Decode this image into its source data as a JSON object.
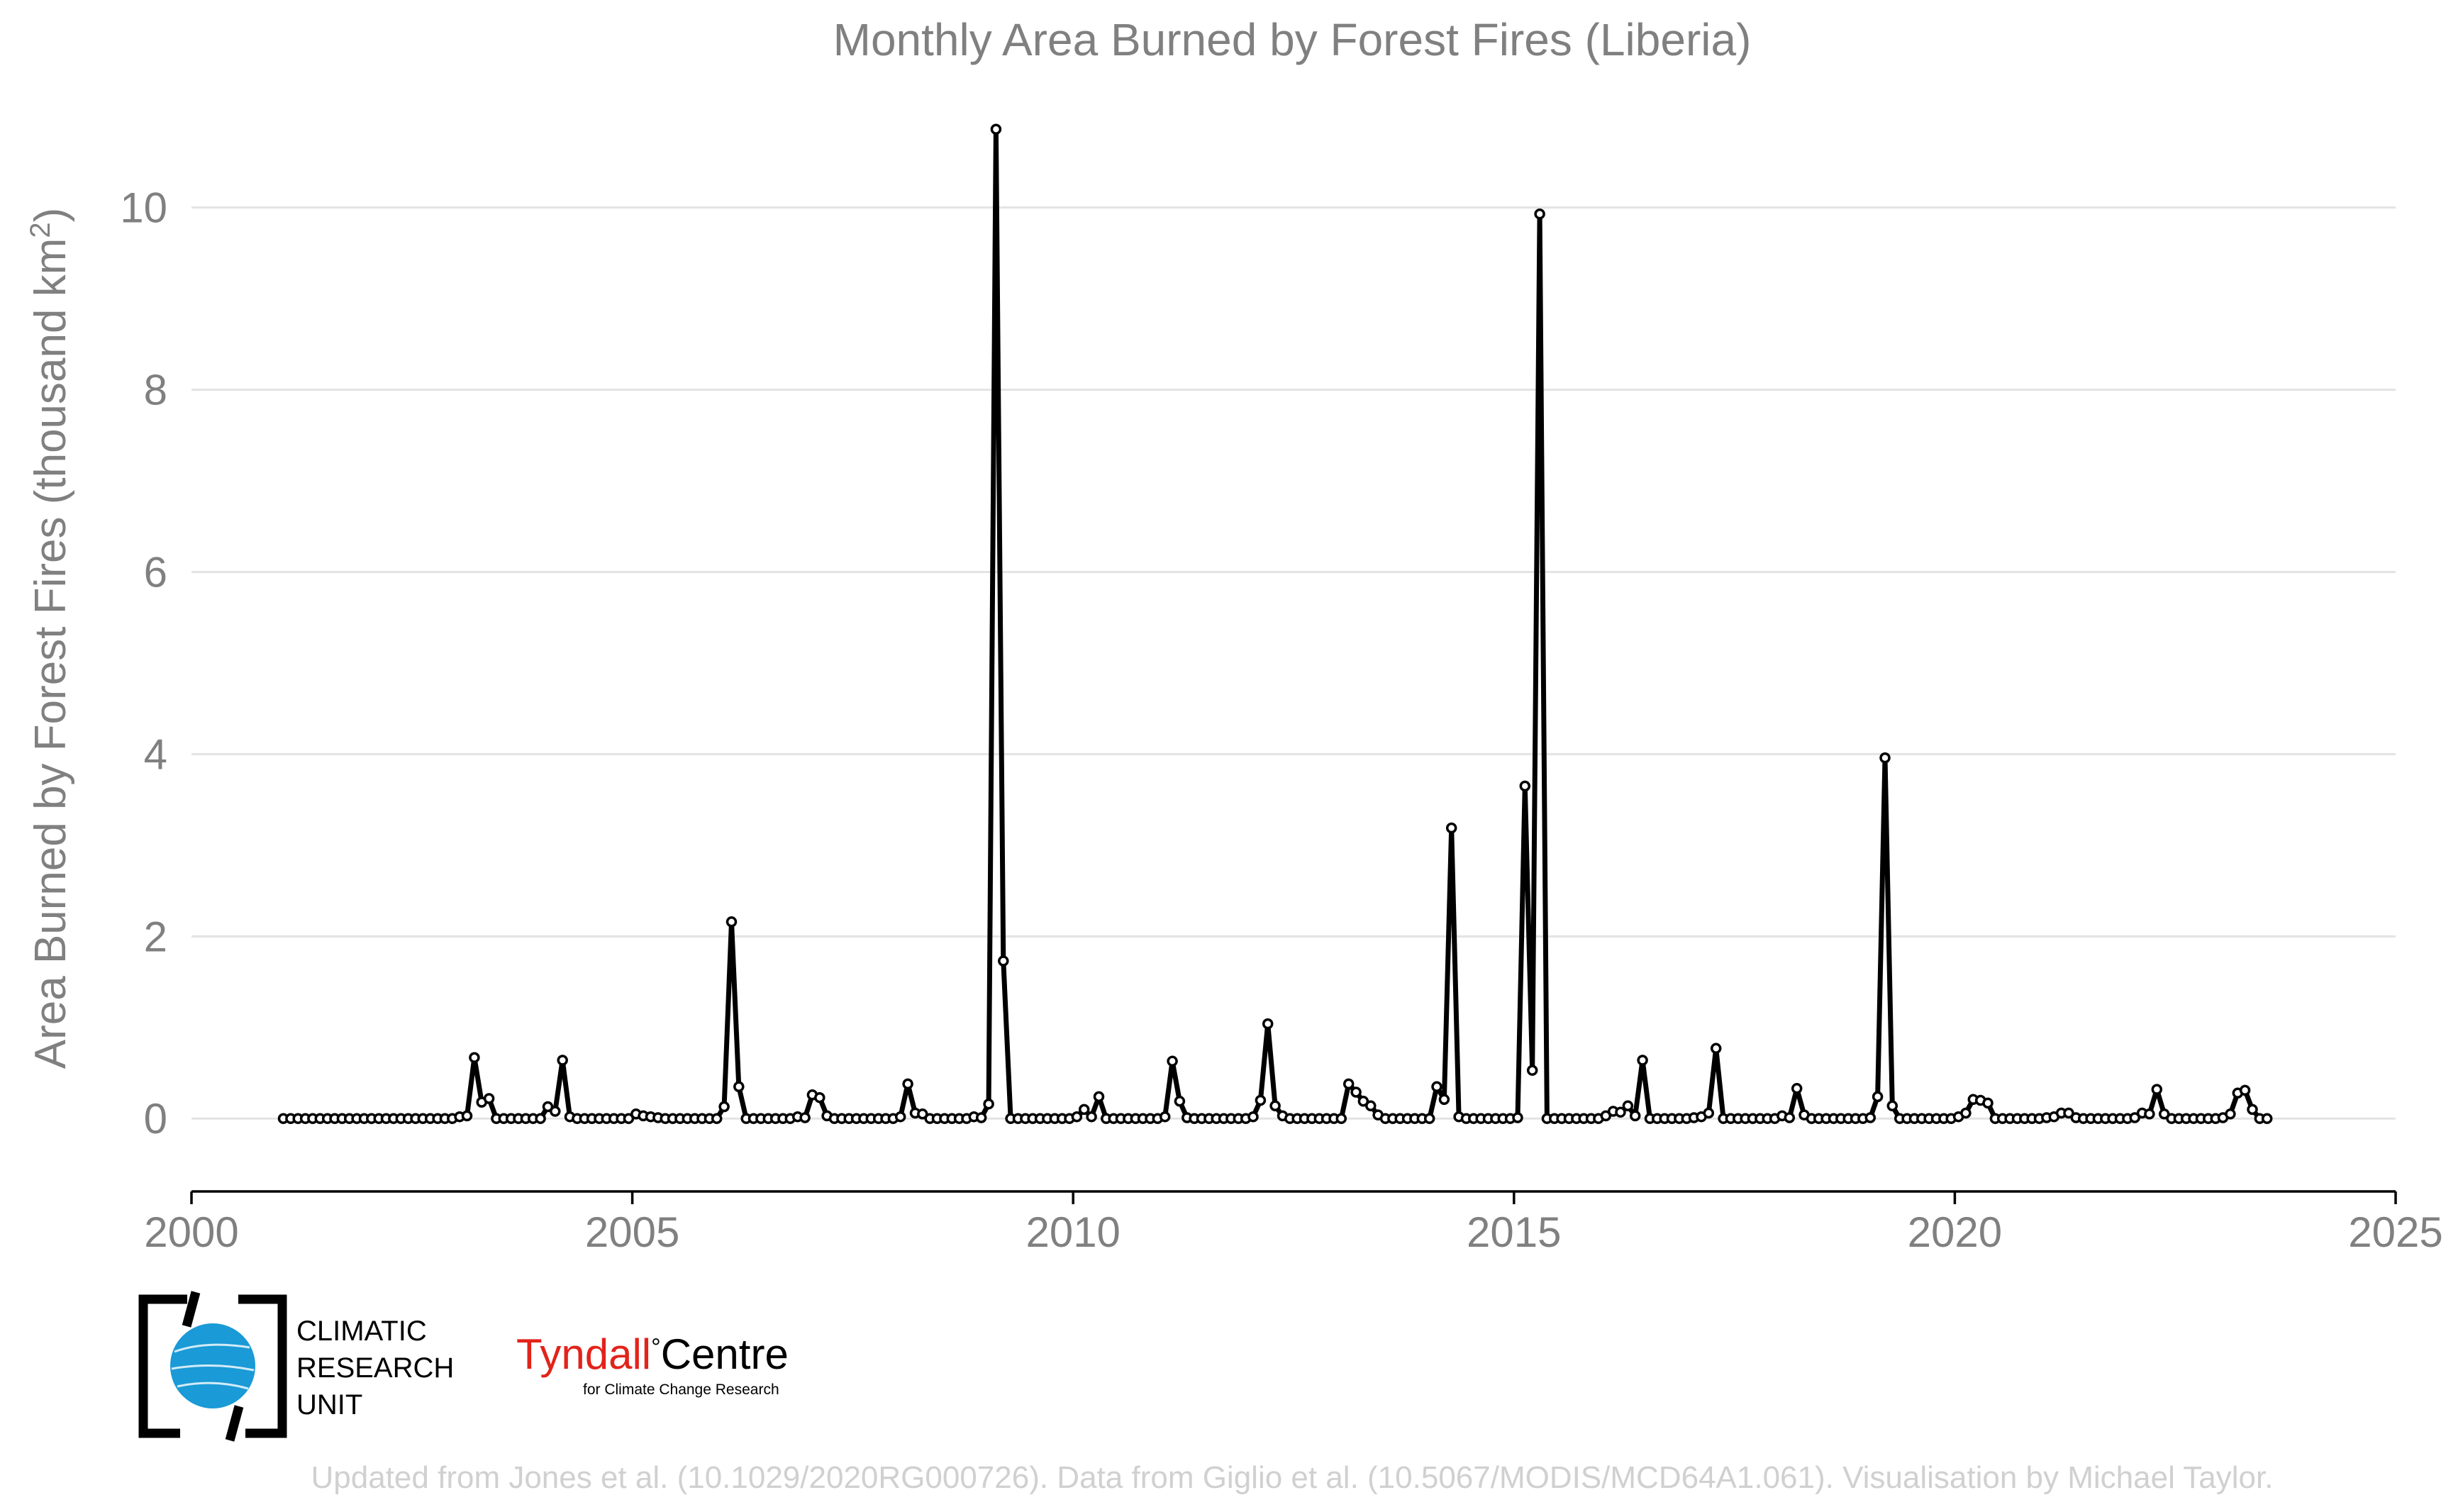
{
  "chart_data": {
    "type": "line",
    "title": "Monthly Area Burned by Forest Fires (Liberia)",
    "ylabel": "Area Burned by Forest Fires (thousand km",
    "ylabel_superscript": "2",
    "ylabel_close": ")",
    "xlim": [
      2000,
      2025
    ],
    "ylim": [
      -0.8,
      11.5
    ],
    "x_ticks": [
      2000,
      2005,
      2010,
      2015,
      2020,
      2025
    ],
    "y_ticks": [
      0,
      2,
      4,
      6,
      8,
      10
    ],
    "grid": true,
    "legend": "none",
    "start": "2001-01",
    "series": [
      {
        "values": [
          0,
          0,
          0,
          0,
          0,
          0,
          0,
          0,
          0,
          0,
          0,
          0,
          0,
          0,
          0,
          0,
          0,
          0,
          0,
          0,
          0,
          0,
          0,
          0,
          0.02,
          0.03,
          0.67,
          0.18,
          0.22,
          0,
          0,
          0,
          0,
          0,
          0,
          0,
          0.13,
          0.08,
          0.64,
          0.02,
          0,
          0,
          0,
          0,
          0,
          0,
          0,
          0,
          0.05,
          0.03,
          0.02,
          0.01,
          0,
          0,
          0,
          0,
          0,
          0,
          0,
          0,
          0.13,
          2.16,
          0.35,
          0,
          0,
          0,
          0,
          0,
          0,
          0,
          0.02,
          0.01,
          0.26,
          0.23,
          0.03,
          0,
          0,
          0,
          0,
          0,
          0,
          0,
          0,
          0,
          0.02,
          0.38,
          0.06,
          0.05,
          0,
          0,
          0,
          0,
          0,
          0,
          0.02,
          0.01,
          0.16,
          10.86,
          1.73,
          0,
          0,
          0,
          0,
          0,
          0,
          0,
          0,
          0,
          0.02,
          0.1,
          0.02,
          0.24,
          0,
          0,
          0,
          0,
          0,
          0,
          0,
          0,
          0.02,
          0.63,
          0.19,
          0.01,
          0,
          0,
          0,
          0,
          0,
          0,
          0,
          0,
          0.02,
          0.2,
          1.04,
          0.14,
          0.03,
          0,
          0,
          0,
          0,
          0,
          0,
          0,
          0,
          0.38,
          0.29,
          0.19,
          0.14,
          0.04,
          0,
          0,
          0,
          0,
          0,
          0,
          0,
          0.35,
          0.21,
          3.19,
          0.02,
          0,
          0,
          0,
          0,
          0,
          0,
          0,
          0.01,
          3.65,
          0.53,
          9.93,
          0,
          0,
          0,
          0,
          0,
          0,
          0,
          0,
          0.03,
          0.08,
          0.07,
          0.14,
          0.03,
          0.64,
          0,
          0,
          0,
          0,
          0,
          0,
          0.01,
          0.02,
          0.06,
          0.77,
          0,
          0,
          0,
          0,
          0,
          0,
          0,
          0,
          0.03,
          0.01,
          0.33,
          0.04,
          0,
          0,
          0,
          0,
          0,
          0,
          0,
          0,
          0.01,
          0.24,
          3.96,
          0.14,
          0,
          0,
          0,
          0,
          0,
          0,
          0,
          0,
          0.02,
          0.06,
          0.21,
          0.2,
          0.17,
          0,
          0,
          0,
          0,
          0,
          0,
          0,
          0.01,
          0.02,
          0.06,
          0.06,
          0.01,
          0,
          0,
          0,
          0,
          0,
          0,
          0,
          0.01,
          0.06,
          0.05,
          0.32,
          0.05,
          0,
          0,
          0,
          0,
          0,
          0,
          0,
          0.01,
          0.05,
          0.28,
          0.31,
          0.1,
          0,
          0
        ]
      }
    ]
  },
  "logos": {
    "cru_line1": "CLIMATIC",
    "cru_line2": "RESEARCH",
    "cru_line3": "UNIT",
    "tyndall_main": "Tyndall",
    "tyndall_degree": "°",
    "tyndall_centre": "Centre",
    "tyndall_sub": "for Climate Change Research"
  },
  "footer": "Updated from Jones et al. (10.1029/2020RG000726). Data from Giglio et al. (10.5067/MODIS/MCD64A1.061). Visualisation by Michael Taylor.",
  "colors": {
    "line": "#000000",
    "cru_blue": "#1a9ad6",
    "tyndall_red": "#e2231a"
  }
}
